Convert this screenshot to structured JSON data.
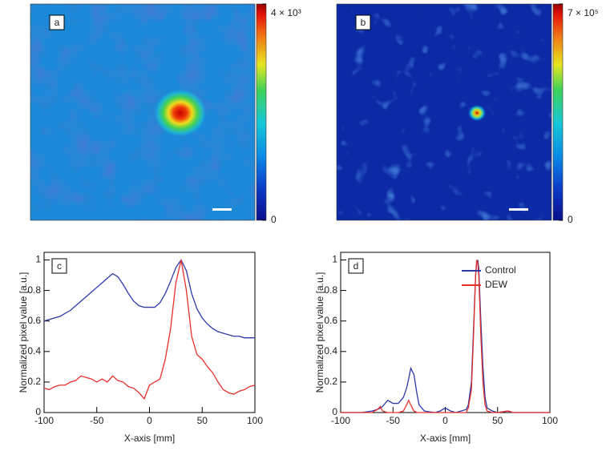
{
  "chart_data": [
    {
      "type": "heatmap",
      "panel_label": "a",
      "clim": [
        0,
        4000
      ],
      "colorbar_ticks": [
        {
          "value": 0,
          "label": "0"
        },
        {
          "value": 4000,
          "label": "4 × 10³"
        }
      ]
    },
    {
      "type": "heatmap",
      "panel_label": "b",
      "clim": [
        0,
        700000
      ],
      "colorbar_ticks": [
        {
          "value": 0,
          "label": "0"
        },
        {
          "value": 700000,
          "label": "7 × 10⁵"
        }
      ]
    },
    {
      "type": "line",
      "panel_label": "c",
      "x_label": "X-axis [mm]",
      "y_label": "Normalized pixel value [a.u.]",
      "xlim": [
        -100,
        100
      ],
      "xticks": [
        -100,
        -50,
        0,
        50,
        100
      ],
      "ylim": [
        0,
        1.05
      ],
      "yticks": [
        0,
        0.2,
        0.4,
        0.6,
        0.8,
        1
      ],
      "x": [
        -100,
        -95,
        -90,
        -85,
        -80,
        -75,
        -70,
        -65,
        -60,
        -55,
        -50,
        -45,
        -40,
        -35,
        -30,
        -25,
        -20,
        -15,
        -10,
        -5,
        0,
        5,
        10,
        15,
        20,
        25,
        30,
        35,
        40,
        45,
        50,
        55,
        60,
        65,
        70,
        75,
        80,
        85,
        90,
        95,
        100
      ],
      "series": [
        {
          "color": "#2b3aa8",
          "values": [
            0.6,
            0.61,
            0.62,
            0.63,
            0.65,
            0.67,
            0.7,
            0.73,
            0.76,
            0.79,
            0.82,
            0.85,
            0.88,
            0.91,
            0.89,
            0.84,
            0.78,
            0.73,
            0.7,
            0.69,
            0.69,
            0.69,
            0.72,
            0.78,
            0.86,
            0.95,
            1.0,
            0.93,
            0.78,
            0.68,
            0.62,
            0.58,
            0.55,
            0.53,
            0.52,
            0.51,
            0.5,
            0.5,
            0.49,
            0.49,
            0.49
          ]
        },
        {
          "color": "#e8302a",
          "values": [
            0.16,
            0.15,
            0.17,
            0.18,
            0.18,
            0.2,
            0.21,
            0.24,
            0.23,
            0.22,
            0.2,
            0.22,
            0.2,
            0.24,
            0.21,
            0.2,
            0.17,
            0.16,
            0.13,
            0.09,
            0.18,
            0.2,
            0.22,
            0.35,
            0.55,
            0.85,
            1.0,
            0.8,
            0.5,
            0.38,
            0.35,
            0.3,
            0.26,
            0.2,
            0.15,
            0.13,
            0.12,
            0.14,
            0.15,
            0.17,
            0.18
          ]
        }
      ]
    },
    {
      "type": "line",
      "panel_label": "d",
      "x_label": "X-axis [mm]",
      "y_label": "Normalized pixel value [a.u.]",
      "xlim": [
        -100,
        100
      ],
      "xticks": [
        -100,
        -50,
        0,
        50,
        100
      ],
      "ylim": [
        0,
        1.05
      ],
      "yticks": [
        0,
        0.2,
        0.4,
        0.6,
        0.8,
        1
      ],
      "legend": "upper right",
      "x": [
        -100,
        -80,
        -70,
        -65,
        -62,
        -60,
        -55,
        -50,
        -45,
        -40,
        -37,
        -35,
        -33,
        -30,
        -27,
        -25,
        -20,
        -10,
        -5,
        0,
        5,
        10,
        20,
        22,
        25,
        27,
        29,
        30,
        31,
        32,
        34,
        36,
        38,
        40,
        45,
        50,
        60,
        65,
        70,
        100
      ],
      "series": [
        {
          "name": "Control",
          "color": "#2b3aa8",
          "values": [
            0,
            0,
            0.01,
            0.02,
            0.03,
            0.04,
            0.08,
            0.06,
            0.06,
            0.1,
            0.16,
            0.22,
            0.29,
            0.25,
            0.12,
            0.05,
            0.01,
            0,
            0.01,
            0.03,
            0.01,
            0,
            0.02,
            0.05,
            0.2,
            0.55,
            0.9,
            0.98,
            1.0,
            0.95,
            0.6,
            0.3,
            0.1,
            0.03,
            0.01,
            0,
            0.01,
            0,
            0,
            0
          ]
        },
        {
          "name": "DEW",
          "color": "#e8302a",
          "values": [
            0,
            0,
            0,
            0.02,
            0.04,
            0.01,
            0,
            0,
            0,
            0.01,
            0.05,
            0.08,
            0.05,
            0.01,
            0,
            0,
            0,
            0,
            0,
            0,
            0,
            0,
            0,
            0.03,
            0.15,
            0.5,
            0.9,
            1.0,
            0.98,
            0.9,
            0.5,
            0.2,
            0.05,
            0.01,
            0,
            0,
            0.01,
            0,
            0,
            0
          ]
        }
      ]
    }
  ]
}
